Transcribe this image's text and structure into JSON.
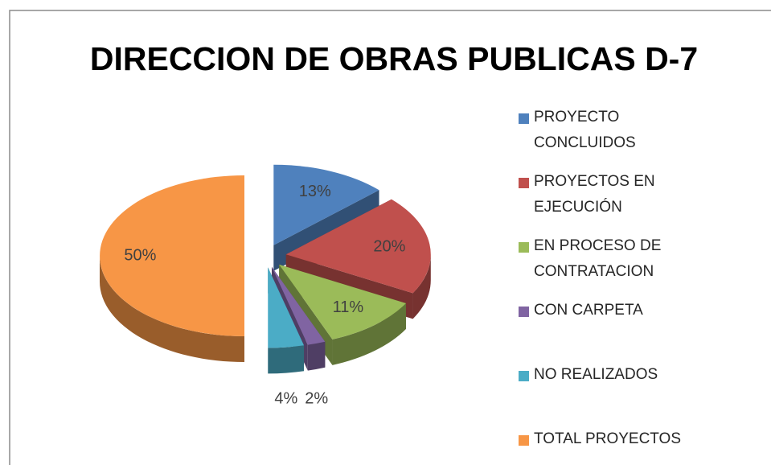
{
  "chart_data": {
    "type": "pie",
    "title": "DIRECCION DE OBRAS PUBLICAS D-7",
    "categories": [
      "PROYECTO  CONCLUIDOS",
      "PROYECTOS EN EJECUCIÓN",
      "EN PROCESO DE CONTRATACION",
      "CON CARPETA",
      "NO REALIZADOS",
      "TOTAL PROYECTOS"
    ],
    "values": [
      13,
      20,
      11,
      2,
      4,
      50
    ],
    "value_labels": [
      "13%",
      "20%",
      "11%",
      "2%",
      "4%",
      "50%"
    ],
    "colors": [
      "#4f81bd",
      "#c0504d",
      "#9bbb59",
      "#8064a2",
      "#4bacc6",
      "#f79646"
    ],
    "legend": "right"
  }
}
